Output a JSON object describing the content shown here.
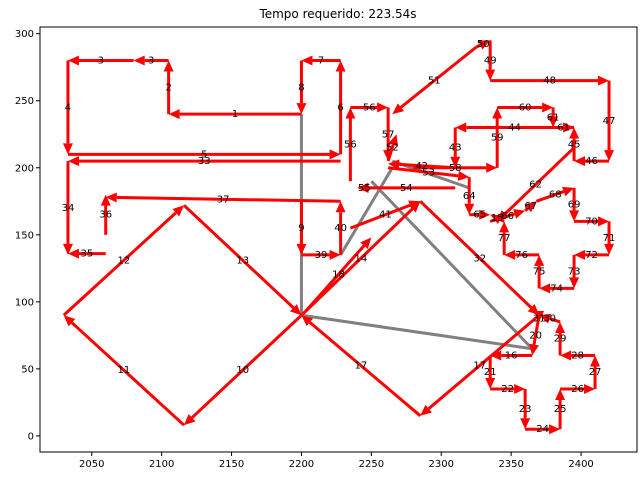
{
  "chart_data": {
    "type": "line",
    "title": "Tempo requerido: 223.54s",
    "xlim": [
      2013,
      2440
    ],
    "ylim": [
      -12,
      305
    ],
    "xticks": [
      2050,
      2100,
      2150,
      2200,
      2250,
      2300,
      2350,
      2400
    ],
    "yticks": [
      0,
      50,
      100,
      150,
      200,
      250,
      300
    ],
    "grid": false,
    "colors": {
      "route": "#ff0000",
      "connector": "#808080"
    },
    "segments": [
      {
        "label": "1",
        "from": [
          2200,
          240
        ],
        "to": [
          2105,
          240
        ]
      },
      {
        "label": "2",
        "from": [
          2105,
          240
        ],
        "to": [
          2105,
          280
        ]
      },
      {
        "label": "3",
        "from": [
          2105,
          280
        ],
        "to": [
          2080,
          280
        ]
      },
      {
        "label": "3",
        "from": [
          2080,
          280
        ],
        "to": [
          2033,
          280
        ]
      },
      {
        "label": "4",
        "from": [
          2033,
          280
        ],
        "to": [
          2033,
          210
        ]
      },
      {
        "label": "5",
        "from": [
          2033,
          210
        ],
        "to": [
          2228,
          210
        ]
      },
      {
        "label": "6",
        "from": [
          2228,
          210
        ],
        "to": [
          2228,
          280
        ]
      },
      {
        "label": "7",
        "from": [
          2228,
          280
        ],
        "to": [
          2200,
          280
        ]
      },
      {
        "label": "8",
        "from": [
          2200,
          280
        ],
        "to": [
          2200,
          240
        ]
      },
      {
        "label": "9",
        "from": [
          2200,
          175
        ],
        "to": [
          2200,
          135
        ]
      },
      {
        "label": "39",
        "from": [
          2200,
          135
        ],
        "to": [
          2228,
          135
        ]
      },
      {
        "label": "40",
        "from": [
          2228,
          135
        ],
        "to": [
          2228,
          175
        ]
      },
      {
        "label": "37",
        "from": [
          2228,
          175
        ],
        "to": [
          2060,
          178
        ]
      },
      {
        "label": "36",
        "from": [
          2060,
          150
        ],
        "to": [
          2060,
          180
        ]
      },
      {
        "label": "35",
        "from": [
          2060,
          136
        ],
        "to": [
          2033,
          136
        ]
      },
      {
        "label": "34",
        "from": [
          2033,
          205
        ],
        "to": [
          2033,
          135
        ]
      },
      {
        "label": "33",
        "from": [
          2228,
          205
        ],
        "to": [
          2033,
          205
        ]
      },
      {
        "label": "12",
        "from": [
          2030,
          90
        ],
        "to": [
          2116,
          172
        ]
      },
      {
        "label": "13",
        "from": [
          2116,
          172
        ],
        "to": [
          2200,
          90
        ]
      },
      {
        "label": "10",
        "from": [
          2200,
          90
        ],
        "to": [
          2116,
          8
        ]
      },
      {
        "label": "11",
        "from": [
          2116,
          8
        ],
        "to": [
          2030,
          90
        ]
      },
      {
        "label": "14",
        "from": [
          2200,
          90
        ],
        "to": [
          2285,
          175
        ]
      },
      {
        "label": "32",
        "from": [
          2285,
          175
        ],
        "to": [
          2370,
          90
        ]
      },
      {
        "label": "17",
        "from": [
          2370,
          90
        ],
        "to": [
          2285,
          15
        ]
      },
      {
        "label": "17",
        "from": [
          2285,
          15
        ],
        "to": [
          2200,
          90
        ]
      },
      {
        "label": "41",
        "from": [
          2235,
          155
        ],
        "to": [
          2285,
          175
        ]
      },
      {
        "label": "18",
        "from": [
          2203,
          93
        ],
        "to": [
          2250,
          148
        ]
      },
      {
        "label": "55",
        "from": [
          2250,
          185
        ],
        "to": [
          2240,
          185
        ]
      },
      {
        "label": "54",
        "from": [
          2310,
          185
        ],
        "to": [
          2240,
          185
        ]
      },
      {
        "label": "56",
        "from": [
          2235,
          190
        ],
        "to": [
          2235,
          245
        ]
      },
      {
        "label": "56",
        "from": [
          2235,
          245
        ],
        "to": [
          2262,
          245
        ]
      },
      {
        "label": "57",
        "from": [
          2262,
          245
        ],
        "to": [
          2262,
          205
        ]
      },
      {
        "label": "52",
        "from": [
          2262,
          205
        ],
        "to": [
          2268,
          225
        ]
      },
      {
        "label": "51",
        "from": [
          2325,
          290
        ],
        "to": [
          2265,
          240
        ]
      },
      {
        "label": "50",
        "from": [
          2325,
          290
        ],
        "to": [
          2335,
          295
        ]
      },
      {
        "label": "49",
        "from": [
          2335,
          295
        ],
        "to": [
          2335,
          265
        ]
      },
      {
        "label": "48",
        "from": [
          2335,
          265
        ],
        "to": [
          2420,
          265
        ]
      },
      {
        "label": "47",
        "from": [
          2420,
          265
        ],
        "to": [
          2420,
          205
        ]
      },
      {
        "label": "46",
        "from": [
          2420,
          205
        ],
        "to": [
          2395,
          205
        ]
      },
      {
        "label": "45",
        "from": [
          2395,
          205
        ],
        "to": [
          2395,
          230
        ]
      },
      {
        "label": "44",
        "from": [
          2395,
          230
        ],
        "to": [
          2310,
          230
        ]
      },
      {
        "label": "43",
        "from": [
          2310,
          230
        ],
        "to": [
          2310,
          200
        ]
      },
      {
        "label": "42",
        "from": [
          2310,
          200
        ],
        "to": [
          2262,
          203
        ]
      },
      {
        "label": "58",
        "from": [
          2280,
          200
        ],
        "to": [
          2340,
          200
        ]
      },
      {
        "label": "59",
        "from": [
          2340,
          200
        ],
        "to": [
          2340,
          245
        ]
      },
      {
        "label": "60",
        "from": [
          2340,
          245
        ],
        "to": [
          2380,
          245
        ]
      },
      {
        "label": "61",
        "from": [
          2380,
          245
        ],
        "to": [
          2380,
          230
        ]
      },
      {
        "label": "61",
        "from": [
          2380,
          230
        ],
        "to": [
          2395,
          230
        ]
      },
      {
        "label": "53",
        "from": [
          2262,
          200
        ],
        "to": [
          2320,
          193
        ]
      },
      {
        "label": "64",
        "from": [
          2320,
          193
        ],
        "to": [
          2320,
          165
        ]
      },
      {
        "label": "65",
        "from": [
          2320,
          165
        ],
        "to": [
          2335,
          165
        ]
      },
      {
        "label": "62",
        "from": [
          2395,
          215
        ],
        "to": [
          2340,
          160
        ]
      },
      {
        "label": "66",
        "from": [
          2335,
          160
        ],
        "to": [
          2360,
          168
        ]
      },
      {
        "label": "67",
        "from": [
          2360,
          168
        ],
        "to": [
          2368,
          175
        ]
      },
      {
        "label": "68",
        "from": [
          2368,
          175
        ],
        "to": [
          2395,
          185
        ]
      },
      {
        "label": "69",
        "from": [
          2395,
          185
        ],
        "to": [
          2395,
          160
        ]
      },
      {
        "label": "70",
        "from": [
          2395,
          160
        ],
        "to": [
          2420,
          160
        ]
      },
      {
        "label": "71",
        "from": [
          2420,
          160
        ],
        "to": [
          2420,
          135
        ]
      },
      {
        "label": "72",
        "from": [
          2420,
          135
        ],
        "to": [
          2395,
          135
        ]
      },
      {
        "label": "73",
        "from": [
          2395,
          135
        ],
        "to": [
          2395,
          110
        ]
      },
      {
        "label": "74",
        "from": [
          2395,
          110
        ],
        "to": [
          2370,
          110
        ]
      },
      {
        "label": "75",
        "from": [
          2370,
          110
        ],
        "to": [
          2370,
          135
        ]
      },
      {
        "label": "76",
        "from": [
          2370,
          135
        ],
        "to": [
          2345,
          135
        ]
      },
      {
        "label": "77",
        "from": [
          2345,
          135
        ],
        "to": [
          2345,
          160
        ]
      },
      {
        "label": "15",
        "from": [
          2345,
          160
        ],
        "to": [
          2335,
          165
        ]
      },
      {
        "label": "20",
        "from": [
          2370,
          90
        ],
        "to": [
          2365,
          60
        ]
      },
      {
        "label": "16",
        "from": [
          2365,
          60
        ],
        "to": [
          2335,
          60
        ]
      },
      {
        "label": "21",
        "from": [
          2335,
          60
        ],
        "to": [
          2335,
          35
        ]
      },
      {
        "label": "22",
        "from": [
          2335,
          35
        ],
        "to": [
          2360,
          35
        ]
      },
      {
        "label": "23",
        "from": [
          2360,
          35
        ],
        "to": [
          2360,
          5
        ]
      },
      {
        "label": "24",
        "from": [
          2360,
          5
        ],
        "to": [
          2385,
          5
        ]
      },
      {
        "label": "25",
        "from": [
          2385,
          5
        ],
        "to": [
          2385,
          35
        ]
      },
      {
        "label": "26",
        "from": [
          2385,
          35
        ],
        "to": [
          2410,
          35
        ]
      },
      {
        "label": "27",
        "from": [
          2410,
          35
        ],
        "to": [
          2410,
          60
        ]
      },
      {
        "label": "28",
        "from": [
          2410,
          60
        ],
        "to": [
          2385,
          60
        ]
      },
      {
        "label": "29",
        "from": [
          2385,
          60
        ],
        "to": [
          2385,
          85
        ]
      },
      {
        "label": "30",
        "from": [
          2385,
          85
        ],
        "to": [
          2370,
          90
        ]
      },
      {
        "label": "31",
        "from": [
          2370,
          90
        ],
        "to": [
          2370,
          85
        ]
      }
    ],
    "connectors": [
      {
        "from": [
          2200,
          240
        ],
        "to": [
          2200,
          90
        ]
      },
      {
        "from": [
          2200,
          90
        ],
        "to": [
          2365,
          65
        ]
      },
      {
        "from": [
          2365,
          65
        ],
        "to": [
          2250,
          190
        ]
      },
      {
        "from": [
          2228,
          135
        ],
        "to": [
          2265,
          200
        ]
      },
      {
        "from": [
          2265,
          205
        ],
        "to": [
          2320,
          185
        ]
      }
    ]
  }
}
